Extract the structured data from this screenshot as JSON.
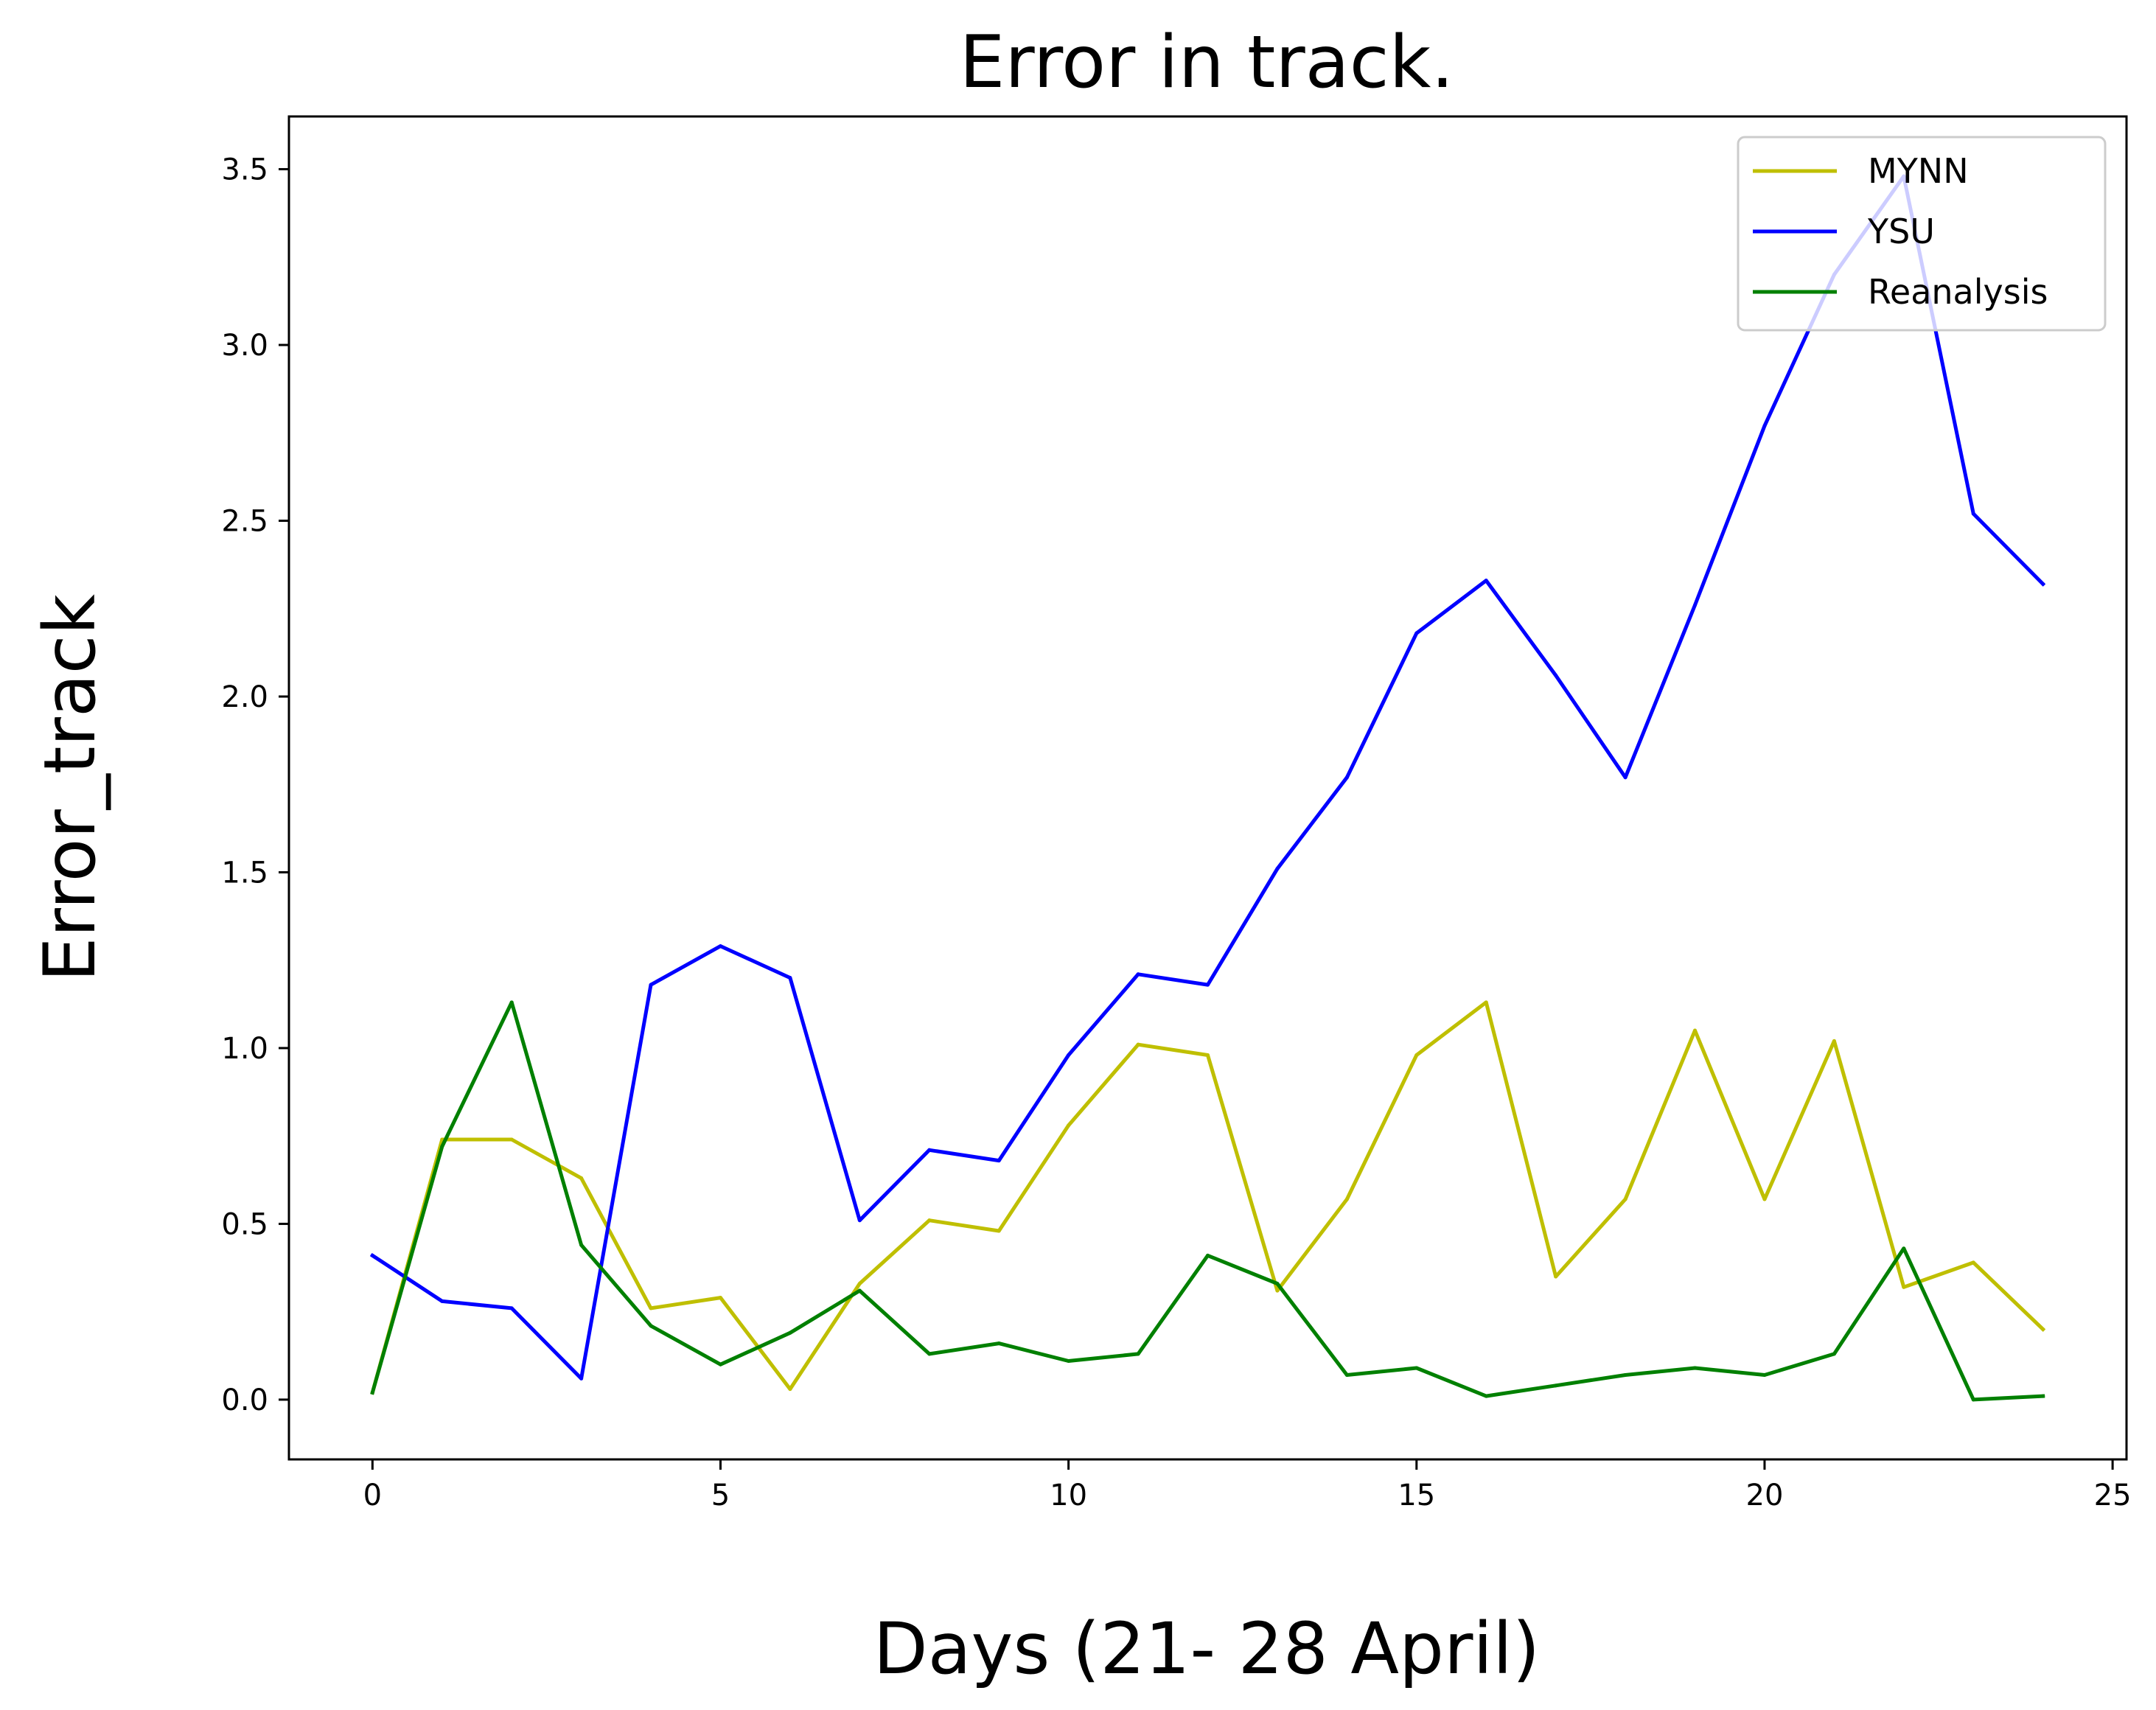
{
  "chart_data": {
    "type": "line",
    "title": "Error in track.",
    "xlabel": "Days (21- 28 April)",
    "ylabel": "Error_track",
    "xlim": [
      -1.2,
      25.2
    ],
    "ylim": [
      -0.17,
      3.65
    ],
    "xticks": [
      0,
      5,
      10,
      15,
      20,
      25
    ],
    "xtick_labels": [
      "0",
      "5",
      "10",
      "15",
      "20",
      "25"
    ],
    "yticks": [
      0.0,
      0.5,
      1.0,
      1.5,
      2.0,
      2.5,
      3.0,
      3.5
    ],
    "ytick_labels": [
      "0.0",
      "0.5",
      "1.0",
      "1.5",
      "2.0",
      "2.5",
      "3.0",
      "3.5"
    ],
    "grid": false,
    "legend_position": "top-right",
    "x": [
      0,
      1,
      2,
      3,
      4,
      5,
      6,
      7,
      8,
      9,
      10,
      11,
      12,
      13,
      14,
      15,
      16,
      17,
      18,
      19,
      20,
      21,
      22,
      23,
      24
    ],
    "series": [
      {
        "name": "MYNN",
        "color": "#bfbf00",
        "values": [
          0.02,
          0.74,
          0.74,
          0.63,
          0.26,
          0.29,
          0.03,
          0.33,
          0.51,
          0.48,
          0.78,
          1.01,
          0.98,
          0.31,
          0.57,
          0.98,
          1.13,
          0.35,
          0.57,
          1.05,
          0.57,
          1.02,
          0.32,
          0.39,
          0.2
        ]
      },
      {
        "name": "YSU",
        "color": "#0000ff",
        "values": [
          0.41,
          0.28,
          0.26,
          0.06,
          1.18,
          1.29,
          1.2,
          0.51,
          0.71,
          0.68,
          0.98,
          1.21,
          1.18,
          1.51,
          1.77,
          2.18,
          2.33,
          2.06,
          1.77,
          2.26,
          2.77,
          3.2,
          3.48,
          2.52,
          2.32
        ]
      },
      {
        "name": "Reanalysis",
        "color": "#008000",
        "values": [
          0.02,
          0.72,
          1.13,
          0.44,
          0.21,
          0.1,
          0.19,
          0.31,
          0.13,
          0.16,
          0.11,
          0.13,
          0.41,
          0.33,
          0.07,
          0.09,
          0.01,
          0.04,
          0.07,
          0.09,
          0.07,
          0.13,
          0.43,
          0.0,
          0.01
        ]
      }
    ]
  }
}
